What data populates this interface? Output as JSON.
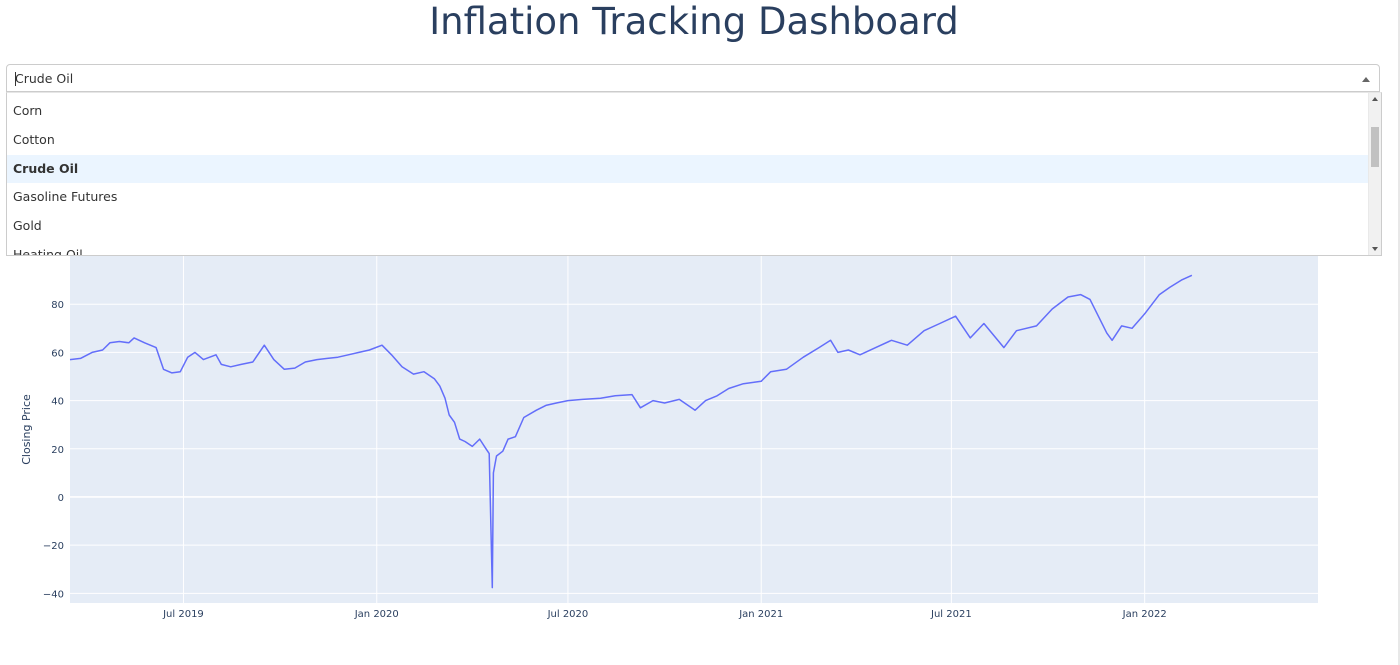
{
  "page": {
    "title": "Inflation Tracking Dashboard"
  },
  "dropdown": {
    "selected": "Crude Oil",
    "options": [
      "Corn",
      "Cotton",
      "Crude Oil",
      "Gasoline Futures",
      "Gold",
      "Heating Oil"
    ]
  },
  "colors": {
    "line": "#636efa",
    "plot_bg": "#e5ecf6",
    "grid": "#ffffff",
    "text": "#2a3f5f",
    "option_highlight": "#ebf5ff"
  },
  "icons": {
    "dropdown_arrow": "chevron-up-icon",
    "scroll_up": "triangle-up-icon",
    "scroll_down": "triangle-down-icon"
  },
  "chart_data": {
    "type": "line",
    "title": "",
    "xlabel": "",
    "ylabel": "Closing Price",
    "x_range": [
      "2019-03-15",
      "2022-06-15"
    ],
    "ylim": [
      -44,
      100
    ],
    "y_ticks": [
      -40,
      -20,
      0,
      20,
      40,
      60,
      80
    ],
    "y_tick_labels": [
      "−40",
      "−20",
      "0",
      "20",
      "40",
      "60",
      "80"
    ],
    "x_ticks": [
      "2019-07-01",
      "2020-01-01",
      "2020-07-01",
      "2021-01-01",
      "2021-07-01",
      "2022-01-01"
    ],
    "x_tick_labels": [
      "Jul 2019",
      "Jan 2020",
      "Jul 2020",
      "Jan 2021",
      "Jul 2021",
      "Jan 2022"
    ],
    "grid": true,
    "legend": "none",
    "series": [
      {
        "points": [
          [
            "2019-03-15",
            57
          ],
          [
            "2019-03-25",
            57.5
          ],
          [
            "2019-04-05",
            60
          ],
          [
            "2019-04-15",
            61
          ],
          [
            "2019-04-22",
            64
          ],
          [
            "2019-05-01",
            64.5
          ],
          [
            "2019-05-10",
            64
          ],
          [
            "2019-05-15",
            66
          ],
          [
            "2019-05-25",
            64
          ],
          [
            "2019-06-05",
            62
          ],
          [
            "2019-06-12",
            53
          ],
          [
            "2019-06-20",
            51.5
          ],
          [
            "2019-06-28",
            52
          ],
          [
            "2019-07-05",
            58
          ],
          [
            "2019-07-12",
            60
          ],
          [
            "2019-07-20",
            57
          ],
          [
            "2019-08-01",
            59
          ],
          [
            "2019-08-06",
            55
          ],
          [
            "2019-08-15",
            54
          ],
          [
            "2019-08-25",
            55
          ],
          [
            "2019-09-05",
            56
          ],
          [
            "2019-09-16",
            63
          ],
          [
            "2019-09-25",
            57
          ],
          [
            "2019-10-05",
            53
          ],
          [
            "2019-10-15",
            53.5
          ],
          [
            "2019-10-25",
            56
          ],
          [
            "2019-11-05",
            57
          ],
          [
            "2019-11-15",
            57.5
          ],
          [
            "2019-11-25",
            58
          ],
          [
            "2019-12-05",
            59
          ],
          [
            "2019-12-15",
            60
          ],
          [
            "2019-12-25",
            61
          ],
          [
            "2020-01-06",
            63
          ],
          [
            "2020-01-15",
            59
          ],
          [
            "2020-01-25",
            54
          ],
          [
            "2020-02-05",
            51
          ],
          [
            "2020-02-15",
            52
          ],
          [
            "2020-02-25",
            49
          ],
          [
            "2020-03-01",
            46
          ],
          [
            "2020-03-06",
            41
          ],
          [
            "2020-03-10",
            34
          ],
          [
            "2020-03-15",
            31
          ],
          [
            "2020-03-20",
            24
          ],
          [
            "2020-03-25",
            23
          ],
          [
            "2020-04-01",
            21
          ],
          [
            "2020-04-08",
            24
          ],
          [
            "2020-04-14",
            20
          ],
          [
            "2020-04-17",
            18
          ],
          [
            "2020-04-20",
            -37.6
          ],
          [
            "2020-04-21",
            10
          ],
          [
            "2020-04-24",
            17
          ],
          [
            "2020-04-30",
            19
          ],
          [
            "2020-05-05",
            24
          ],
          [
            "2020-05-12",
            25
          ],
          [
            "2020-05-20",
            33
          ],
          [
            "2020-06-01",
            36
          ],
          [
            "2020-06-10",
            38
          ],
          [
            "2020-06-20",
            39
          ],
          [
            "2020-07-01",
            40
          ],
          [
            "2020-07-15",
            40.5
          ],
          [
            "2020-08-01",
            41
          ],
          [
            "2020-08-15",
            42
          ],
          [
            "2020-08-31",
            42.5
          ],
          [
            "2020-09-08",
            37
          ],
          [
            "2020-09-20",
            40
          ],
          [
            "2020-10-01",
            39
          ],
          [
            "2020-10-15",
            40.5
          ],
          [
            "2020-10-30",
            36
          ],
          [
            "2020-11-09",
            40
          ],
          [
            "2020-11-20",
            42
          ],
          [
            "2020-12-01",
            45
          ],
          [
            "2020-12-15",
            47
          ],
          [
            "2021-01-01",
            48
          ],
          [
            "2021-01-10",
            52
          ],
          [
            "2021-01-25",
            53
          ],
          [
            "2021-02-10",
            58
          ],
          [
            "2021-02-25",
            62
          ],
          [
            "2021-03-08",
            65
          ],
          [
            "2021-03-15",
            60
          ],
          [
            "2021-03-25",
            61
          ],
          [
            "2021-04-05",
            59
          ],
          [
            "2021-04-20",
            62
          ],
          [
            "2021-05-05",
            65
          ],
          [
            "2021-05-20",
            63
          ],
          [
            "2021-06-05",
            69
          ],
          [
            "2021-06-20",
            72
          ],
          [
            "2021-07-05",
            75
          ],
          [
            "2021-07-19",
            66
          ],
          [
            "2021-08-01",
            72
          ],
          [
            "2021-08-20",
            62
          ],
          [
            "2021-09-01",
            69
          ],
          [
            "2021-09-20",
            71
          ],
          [
            "2021-10-05",
            78
          ],
          [
            "2021-10-20",
            83
          ],
          [
            "2021-11-01",
            84
          ],
          [
            "2021-11-10",
            82
          ],
          [
            "2021-11-26",
            68
          ],
          [
            "2021-12-01",
            65
          ],
          [
            "2021-12-10",
            71
          ],
          [
            "2021-12-20",
            70
          ],
          [
            "2022-01-01",
            76
          ],
          [
            "2022-01-15",
            84
          ],
          [
            "2022-01-25",
            87
          ],
          [
            "2022-02-05",
            90
          ],
          [
            "2022-02-15",
            92
          ]
        ]
      }
    ]
  }
}
